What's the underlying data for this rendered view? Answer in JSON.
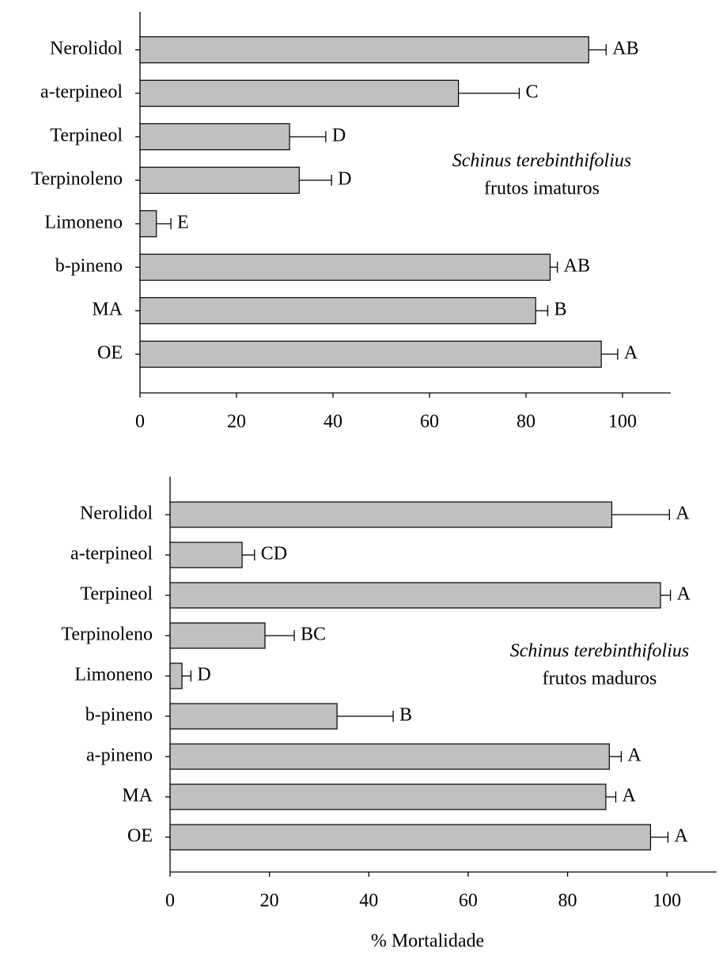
{
  "chart_data": [
    {
      "type": "bar",
      "orientation": "horizontal",
      "categories": [
        "Nerolidol",
        "a-terpineol",
        "Terpineol",
        "Terpinoleno",
        "Limoneno",
        "b-pineno",
        "MA",
        "OE"
      ],
      "values": [
        93,
        66,
        31,
        33,
        3.4,
        85,
        82,
        95.6
      ],
      "errors": [
        3.6,
        12.6,
        7.5,
        6.7,
        3,
        1.5,
        2.5,
        3.4
      ],
      "group_labels": [
        "AB",
        "C",
        "D",
        "D",
        "E",
        "AB",
        "B",
        "A"
      ],
      "color": "#c0c0c0",
      "xlim": [
        0,
        110
      ],
      "xticks": [
        0,
        20,
        40,
        60,
        80,
        100
      ],
      "annotation": [
        "Schinus terebinthifolius",
        "frutos imaturos"
      ]
    },
    {
      "type": "bar",
      "orientation": "horizontal",
      "categories": [
        "Nerolidol",
        "a-terpineol",
        "Terpineol",
        "Terpinoleno",
        "Limoneno",
        "b-pineno",
        "a-pineno",
        "MA",
        "OE"
      ],
      "values": [
        88.9,
        14.5,
        98.7,
        19.1,
        2.4,
        33.6,
        88.4,
        87.7,
        96.7
      ],
      "errors": [
        11.6,
        2.5,
        2,
        5.9,
        1.8,
        11.3,
        2.4,
        2,
        3.5
      ],
      "group_labels": [
        "A",
        "CD",
        "A",
        "BC",
        "D",
        "B",
        "A",
        "A",
        "A"
      ],
      "color": "#c0c0c0",
      "xlim": [
        0,
        110
      ],
      "xticks": [
        0,
        20,
        40,
        60,
        80,
        100
      ],
      "xlabel": "% Mortalidade",
      "annotation": [
        "Schinus terebinthifolius",
        "frutos maduros"
      ]
    }
  ]
}
